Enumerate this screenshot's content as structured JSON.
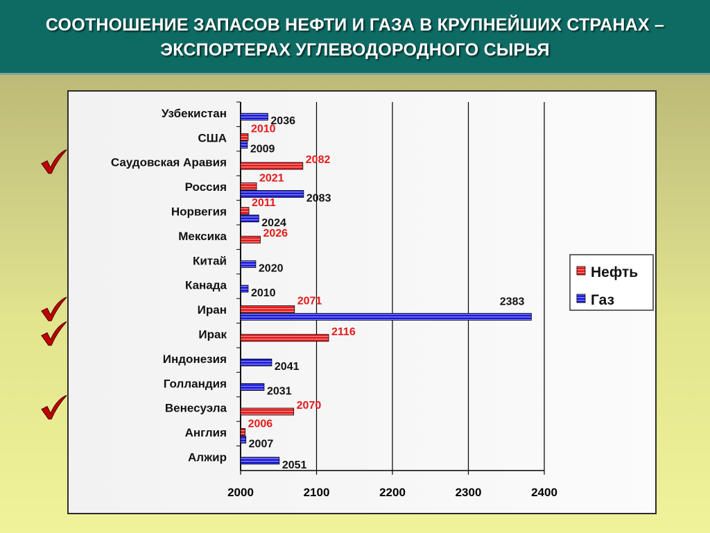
{
  "title": {
    "line1": "СООТНОШЕНИЕ ЗАПАСОВ  НЕФТИ И ГАЗА В КРУПНЕЙШИХ СТРАНАХ –",
    "line2": "ЭКСПОРТЕРАХ УГЛЕВОДОРОДНОГО СЫРЬЯ"
  },
  "markers": {
    "icon": "checkmark-icon",
    "color": "#c00000",
    "marked_countries": [
      "Саудовская Аравия",
      "Иран",
      "Ирак",
      "Венесуэла"
    ]
  },
  "colors": {
    "oil": "#e31a1a",
    "gas": "#1a1ad4"
  },
  "chart_data": {
    "type": "bar",
    "orientation": "horizontal",
    "categories": [
      "Узбекистан",
      "США",
      "Саудовская Аравия",
      "Россия",
      "Норвегия",
      "Мексика",
      "Китай",
      "Канада",
      "Иран",
      "Ирак",
      "Индонезия",
      "Голландия",
      "Венесуэла",
      "Англия",
      "Алжир"
    ],
    "series": [
      {
        "name": "Нефть",
        "color": "#e31a1a",
        "values": [
          null,
          2010,
          2082,
          2021,
          2011,
          2026,
          null,
          null,
          2071,
          2116,
          null,
          null,
          2070,
          2006,
          null
        ]
      },
      {
        "name": "Газ",
        "color": "#1a1ad4",
        "values": [
          2036,
          2009,
          null,
          2083,
          2024,
          null,
          2020,
          2010,
          2383,
          null,
          2041,
          2031,
          null,
          2007,
          2051
        ]
      }
    ],
    "x_ticks": [
      "2000",
      "2100",
      "2200",
      "2300",
      "2400"
    ],
    "xlim": [
      2000,
      2400
    ],
    "grid": "vertical",
    "legend_position": "right"
  }
}
